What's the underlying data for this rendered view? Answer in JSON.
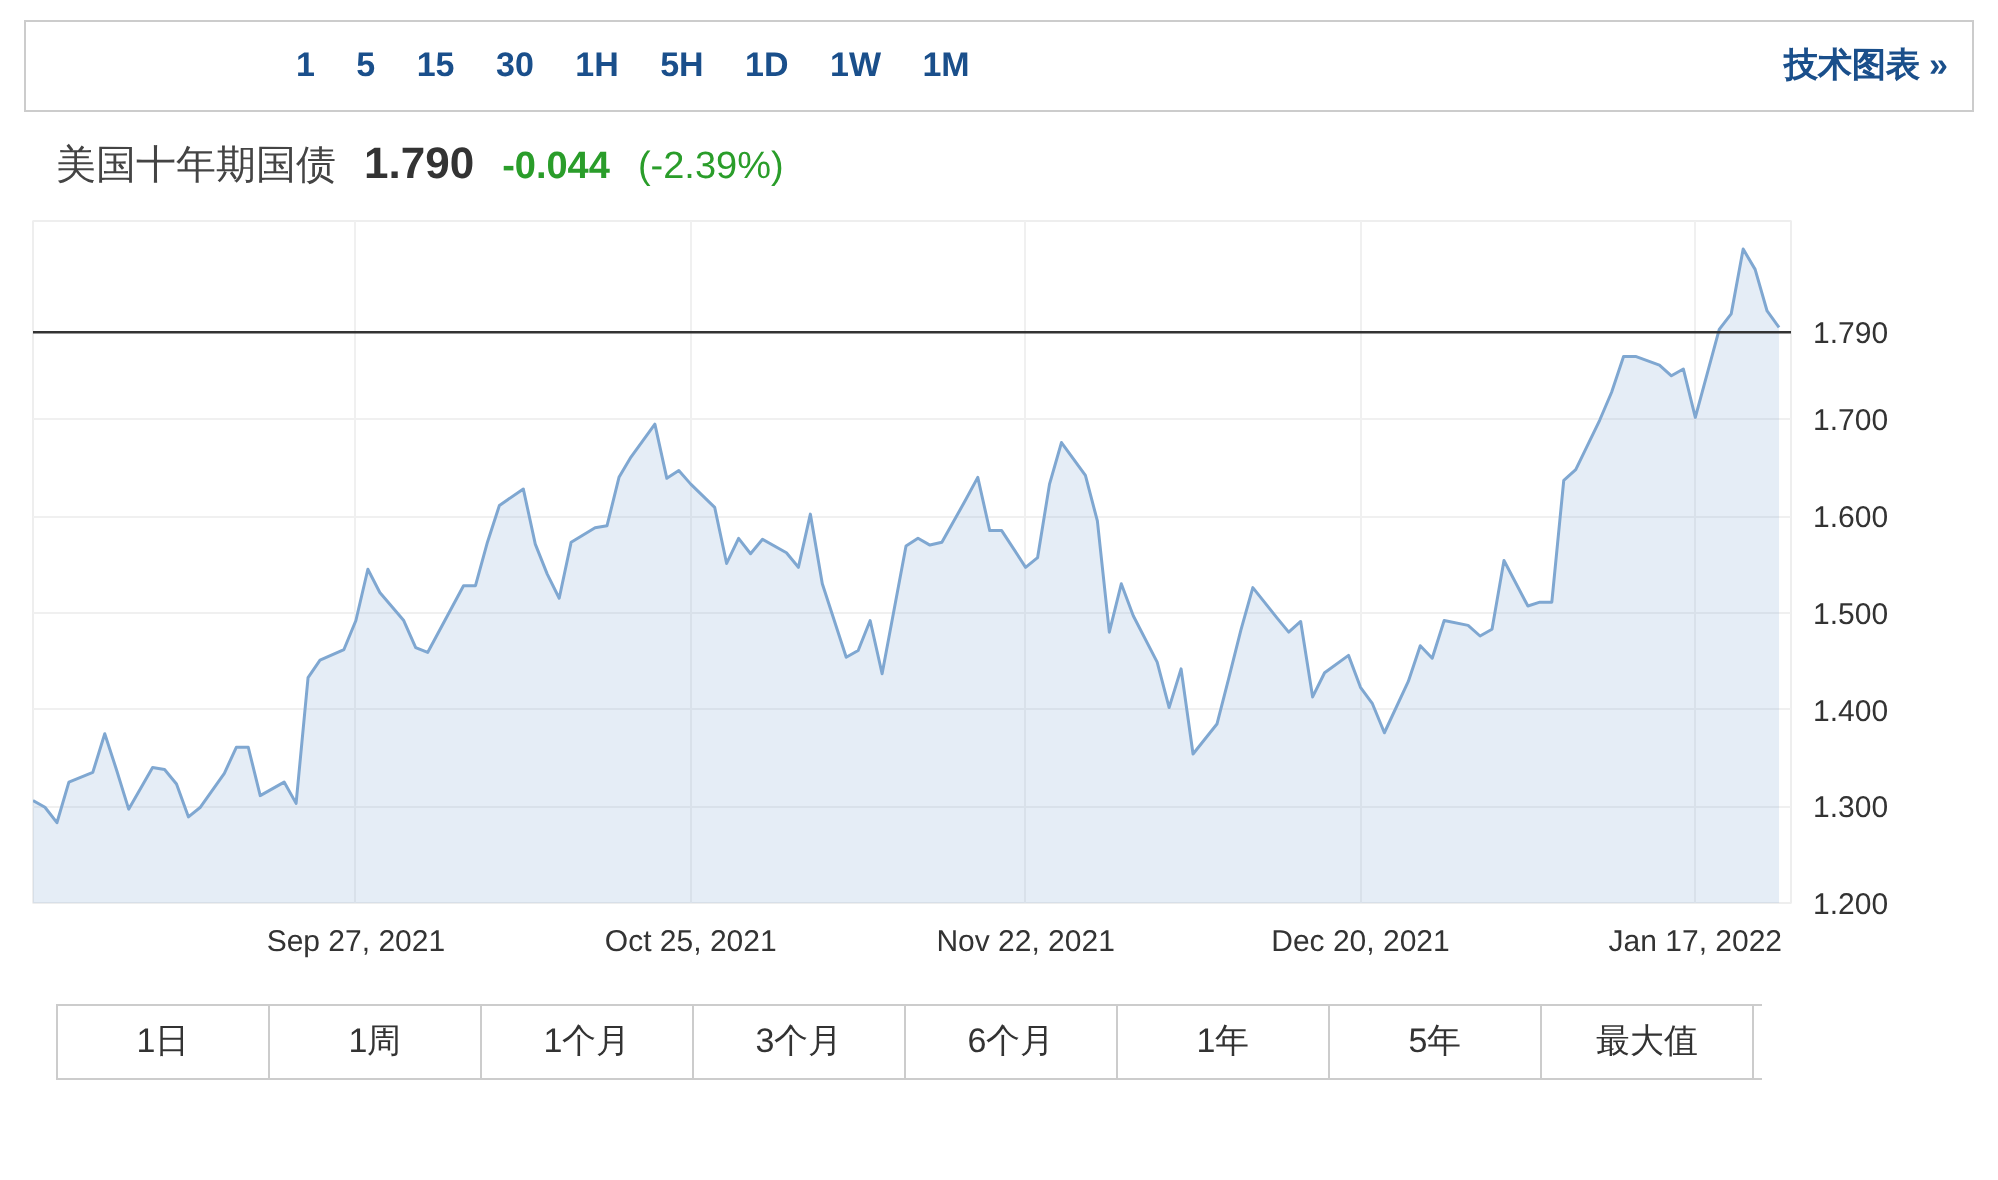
{
  "chart_data": {
    "type": "area",
    "title": "美国十年期国债",
    "annotations": [
      "1.790",
      "-0.044",
      "(-2.39%)",
      "1 5 15 30 1H 5H 1D 1W 1M",
      "技术图表 »",
      "1日",
      "1周",
      "1个月",
      "3个月",
      "6个月",
      "1年",
      "5年",
      "最大值"
    ],
    "x": [
      "2021-08-31",
      "2021-09-01",
      "2021-09-02",
      "2021-09-03",
      "2021-09-05",
      "2021-09-06",
      "2021-09-07",
      "2021-09-08",
      "2021-09-10",
      "2021-09-11",
      "2021-09-12",
      "2021-09-13",
      "2021-09-14",
      "2021-09-16",
      "2021-09-17",
      "2021-09-18",
      "2021-09-19",
      "2021-09-21",
      "2021-09-22",
      "2021-09-23",
      "2021-09-24",
      "2021-09-26",
      "2021-09-27",
      "2021-09-28",
      "2021-09-29",
      "2021-10-01",
      "2021-10-02",
      "2021-10-03",
      "2021-10-04",
      "2021-10-06",
      "2021-10-07",
      "2021-10-08",
      "2021-10-09",
      "2021-10-11",
      "2021-10-12",
      "2021-10-13",
      "2021-10-14",
      "2021-10-15",
      "2021-10-17",
      "2021-10-18",
      "2021-10-19",
      "2021-10-20",
      "2021-10-22",
      "2021-10-23",
      "2021-10-24",
      "2021-10-25",
      "2021-10-27",
      "2021-10-28",
      "2021-10-29",
      "2021-10-30",
      "2021-10-31",
      "2021-11-02",
      "2021-11-03",
      "2021-11-04",
      "2021-11-05",
      "2021-11-07",
      "2021-11-08",
      "2021-11-09",
      "2021-11-10",
      "2021-11-12",
      "2021-11-13",
      "2021-11-14",
      "2021-11-15",
      "2021-11-17",
      "2021-11-18",
      "2021-11-19",
      "2021-11-20",
      "2021-11-22",
      "2021-11-23",
      "2021-11-24",
      "2021-11-25",
      "2021-11-27",
      "2021-11-28",
      "2021-11-29",
      "2021-11-30",
      "2021-12-01",
      "2021-12-03",
      "2021-12-04",
      "2021-12-05",
      "2021-12-06",
      "2021-12-08",
      "2021-12-09",
      "2021-12-10",
      "2021-12-11",
      "2021-12-13",
      "2021-12-14",
      "2021-12-15",
      "2021-12-16",
      "2021-12-17",
      "2021-12-19",
      "2021-12-20",
      "2021-12-21",
      "2021-12-22",
      "2021-12-24",
      "2021-12-25",
      "2021-12-26",
      "2021-12-27",
      "2021-12-29",
      "2021-12-30",
      "2021-12-31",
      "2022-01-01",
      "2022-01-03",
      "2022-01-04",
      "2022-01-05",
      "2022-01-06",
      "2022-01-07",
      "2022-01-09",
      "2022-01-10",
      "2022-01-11",
      "2022-01-12",
      "2022-01-14",
      "2022-01-15",
      "2022-01-16",
      "2022-01-17",
      "2022-01-19",
      "2022-01-20",
      "2022-01-21",
      "2022-01-22",
      "2022-01-23",
      "2022-01-24"
    ],
    "series": [
      {
        "color": "#7fa7d1",
        "values": [
          1.306,
          1.299,
          1.283,
          1.325,
          1.335,
          1.375,
          1.337,
          1.297,
          1.34,
          1.338,
          1.323,
          1.289,
          1.299,
          1.334,
          1.361,
          1.361,
          1.311,
          1.325,
          1.303,
          1.433,
          1.451,
          1.462,
          1.492,
          1.545,
          1.521,
          1.492,
          1.464,
          1.459,
          1.482,
          1.528,
          1.528,
          1.573,
          1.611,
          1.628,
          1.571,
          1.54,
          1.515,
          1.573,
          1.588,
          1.59,
          1.64,
          1.661,
          1.695,
          1.639,
          1.647,
          1.633,
          1.609,
          1.551,
          1.577,
          1.561,
          1.576,
          1.562,
          1.547,
          1.602,
          1.53,
          1.454,
          1.461,
          1.492,
          1.437,
          1.569,
          1.577,
          1.57,
          1.573,
          1.617,
          1.64,
          1.585,
          1.585,
          1.547,
          1.557,
          1.633,
          1.676,
          1.642,
          1.595,
          1.48,
          1.53,
          1.497,
          1.449,
          1.402,
          1.442,
          1.354,
          1.385,
          1.433,
          1.482,
          1.526,
          1.495,
          1.48,
          1.491,
          1.413,
          1.438,
          1.456,
          1.423,
          1.406,
          1.376,
          1.429,
          1.466,
          1.453,
          1.492,
          1.487,
          1.476,
          1.483,
          1.554,
          1.507,
          1.511,
          1.511,
          1.637,
          1.648,
          1.699,
          1.728,
          1.765,
          1.765,
          1.756,
          1.745,
          1.752,
          1.702,
          1.793,
          1.809,
          1.876,
          1.855,
          1.812,
          1.795
        ]
      }
    ],
    "xlim": [
      "2021-08-31",
      "2022-01-25"
    ],
    "xticks": [
      {
        "value": "2021-09-27",
        "label": "Sep 27, 2021"
      },
      {
        "value": "2021-10-25",
        "label": "Oct 25, 2021"
      },
      {
        "value": "2021-11-22",
        "label": "Nov 22, 2021"
      },
      {
        "value": "2021-12-20",
        "label": "Dec 20, 2021"
      },
      {
        "value": "2022-01-17",
        "label": "Jan 17, 2022"
      }
    ],
    "ylim": [
      1.2,
      1.905
    ],
    "yticks": [
      {
        "value": 1.2,
        "label": "1.200"
      },
      {
        "value": 1.3,
        "label": "1.300"
      },
      {
        "value": 1.4,
        "label": "1.400"
      },
      {
        "value": 1.5,
        "label": "1.500"
      },
      {
        "value": 1.6,
        "label": "1.600"
      },
      {
        "value": 1.7,
        "label": "1.700"
      }
    ],
    "ref_lines": [
      {
        "axis": "y",
        "value": 1.79,
        "label": "1.790",
        "color": "#333333"
      }
    ],
    "grid": true
  }
}
